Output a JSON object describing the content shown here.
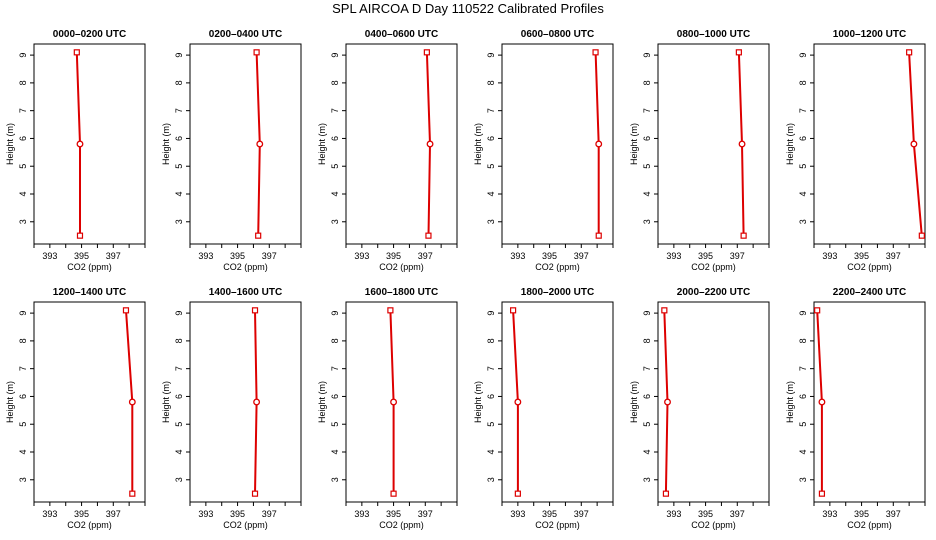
{
  "title": "SPL AIRCOA D  Day 110522  Calibrated Profiles",
  "colors": {
    "profile": "#dd0000",
    "axis": "#000000"
  },
  "chart_data": [
    {
      "type": "line",
      "title": "0000–0200 UTC",
      "xlabel": "CO2 (ppm)",
      "ylabel": "Height (m)",
      "xlim": [
        392,
        399
      ],
      "ylim": [
        2.2,
        9.4
      ],
      "x_ticks": [
        393,
        395,
        397
      ],
      "y_ticks": [
        3,
        4,
        5,
        6,
        7,
        8,
        9
      ],
      "points": [
        {
          "x": 394.7,
          "y": 9.1
        },
        {
          "x": 394.9,
          "y": 5.8
        },
        {
          "x": 394.9,
          "y": 2.5
        }
      ]
    },
    {
      "type": "line",
      "title": "0200–0400 UTC",
      "xlabel": "CO2 (ppm)",
      "ylabel": "Height (m)",
      "xlim": [
        392,
        399
      ],
      "ylim": [
        2.2,
        9.4
      ],
      "x_ticks": [
        393,
        395,
        397
      ],
      "y_ticks": [
        3,
        4,
        5,
        6,
        7,
        8,
        9
      ],
      "points": [
        {
          "x": 396.2,
          "y": 9.1
        },
        {
          "x": 396.4,
          "y": 5.8
        },
        {
          "x": 396.3,
          "y": 2.5
        }
      ]
    },
    {
      "type": "line",
      "title": "0400–0600 UTC",
      "xlabel": "CO2 (ppm)",
      "ylabel": "Height (m)",
      "xlim": [
        392,
        399
      ],
      "ylim": [
        2.2,
        9.4
      ],
      "x_ticks": [
        393,
        395,
        397
      ],
      "y_ticks": [
        3,
        4,
        5,
        6,
        7,
        8,
        9
      ],
      "points": [
        {
          "x": 397.1,
          "y": 9.1
        },
        {
          "x": 397.3,
          "y": 5.8
        },
        {
          "x": 397.2,
          "y": 2.5
        }
      ]
    },
    {
      "type": "line",
      "title": "0600–0800 UTC",
      "xlabel": "CO2 (ppm)",
      "ylabel": "Height (m)",
      "xlim": [
        392,
        399
      ],
      "ylim": [
        2.2,
        9.4
      ],
      "x_ticks": [
        393,
        395,
        397
      ],
      "y_ticks": [
        3,
        4,
        5,
        6,
        7,
        8,
        9
      ],
      "points": [
        {
          "x": 397.9,
          "y": 9.1
        },
        {
          "x": 398.1,
          "y": 5.8
        },
        {
          "x": 398.1,
          "y": 2.5
        }
      ]
    },
    {
      "type": "line",
      "title": "0800–1000 UTC",
      "xlabel": "CO2 (ppm)",
      "ylabel": "Height (m)",
      "xlim": [
        392,
        399
      ],
      "ylim": [
        2.2,
        9.4
      ],
      "x_ticks": [
        393,
        395,
        397
      ],
      "y_ticks": [
        3,
        4,
        5,
        6,
        7,
        8,
        9
      ],
      "points": [
        {
          "x": 397.1,
          "y": 9.1
        },
        {
          "x": 397.3,
          "y": 5.8
        },
        {
          "x": 397.4,
          "y": 2.5
        }
      ]
    },
    {
      "type": "line",
      "title": "1000–1200 UTC",
      "xlabel": "CO2 (ppm)",
      "ylabel": "Height (m)",
      "xlim": [
        392,
        399
      ],
      "ylim": [
        2.2,
        9.4
      ],
      "x_ticks": [
        393,
        395,
        397
      ],
      "y_ticks": [
        3,
        4,
        5,
        6,
        7,
        8,
        9
      ],
      "points": [
        {
          "x": 398.0,
          "y": 9.1
        },
        {
          "x": 398.3,
          "y": 5.8
        },
        {
          "x": 398.8,
          "y": 2.5
        }
      ]
    },
    {
      "type": "line",
      "title": "1200–1400 UTC",
      "xlabel": "CO2 (ppm)",
      "ylabel": "Height (m)",
      "xlim": [
        392,
        399
      ],
      "ylim": [
        2.2,
        9.4
      ],
      "x_ticks": [
        393,
        395,
        397
      ],
      "y_ticks": [
        3,
        4,
        5,
        6,
        7,
        8,
        9
      ],
      "points": [
        {
          "x": 397.8,
          "y": 9.1
        },
        {
          "x": 398.2,
          "y": 5.8
        },
        {
          "x": 398.2,
          "y": 2.5
        }
      ]
    },
    {
      "type": "line",
      "title": "1400–1600 UTC",
      "xlabel": "CO2 (ppm)",
      "ylabel": "Height (m)",
      "xlim": [
        392,
        399
      ],
      "ylim": [
        2.2,
        9.4
      ],
      "x_ticks": [
        393,
        395,
        397
      ],
      "y_ticks": [
        3,
        4,
        5,
        6,
        7,
        8,
        9
      ],
      "points": [
        {
          "x": 396.1,
          "y": 9.1
        },
        {
          "x": 396.2,
          "y": 5.8
        },
        {
          "x": 396.1,
          "y": 2.5
        }
      ]
    },
    {
      "type": "line",
      "title": "1600–1800 UTC",
      "xlabel": "CO2 (ppm)",
      "ylabel": "Height (m)",
      "xlim": [
        392,
        399
      ],
      "ylim": [
        2.2,
        9.4
      ],
      "x_ticks": [
        393,
        395,
        397
      ],
      "y_ticks": [
        3,
        4,
        5,
        6,
        7,
        8,
        9
      ],
      "points": [
        {
          "x": 394.8,
          "y": 9.1
        },
        {
          "x": 395.0,
          "y": 5.8
        },
        {
          "x": 395.0,
          "y": 2.5
        }
      ]
    },
    {
      "type": "line",
      "title": "1800–2000 UTC",
      "xlabel": "CO2 (ppm)",
      "ylabel": "Height (m)",
      "xlim": [
        392,
        399
      ],
      "ylim": [
        2.2,
        9.4
      ],
      "x_ticks": [
        393,
        395,
        397
      ],
      "y_ticks": [
        3,
        4,
        5,
        6,
        7,
        8,
        9
      ],
      "points": [
        {
          "x": 392.7,
          "y": 9.1
        },
        {
          "x": 393.0,
          "y": 5.8
        },
        {
          "x": 393.0,
          "y": 2.5
        }
      ]
    },
    {
      "type": "line",
      "title": "2000–2200 UTC",
      "xlabel": "CO2 (ppm)",
      "ylabel": "Height (m)",
      "xlim": [
        392,
        399
      ],
      "ylim": [
        2.2,
        9.4
      ],
      "x_ticks": [
        393,
        395,
        397
      ],
      "y_ticks": [
        3,
        4,
        5,
        6,
        7,
        8,
        9
      ],
      "points": [
        {
          "x": 392.4,
          "y": 9.1
        },
        {
          "x": 392.6,
          "y": 5.8
        },
        {
          "x": 392.5,
          "y": 2.5
        }
      ]
    },
    {
      "type": "line",
      "title": "2200–2400 UTC",
      "xlabel": "CO2 (ppm)",
      "ylabel": "Height (m)",
      "xlim": [
        392,
        399
      ],
      "ylim": [
        2.2,
        9.4
      ],
      "x_ticks": [
        393,
        395,
        397
      ],
      "y_ticks": [
        3,
        4,
        5,
        6,
        7,
        8,
        9
      ],
      "points": [
        {
          "x": 392.2,
          "y": 9.1
        },
        {
          "x": 392.5,
          "y": 5.8
        },
        {
          "x": 392.5,
          "y": 2.5
        }
      ]
    }
  ]
}
